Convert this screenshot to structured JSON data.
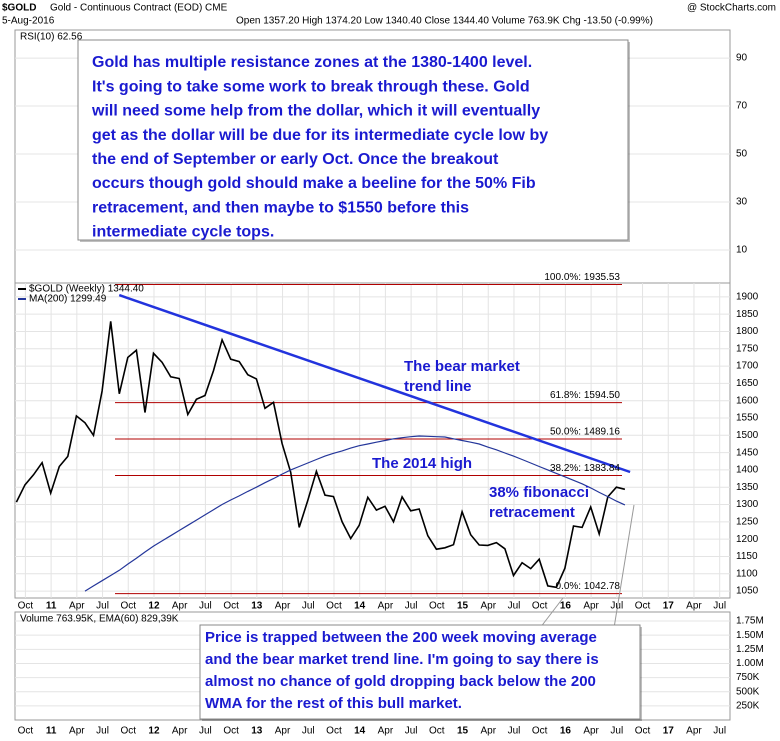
{
  "chart_data": {
    "type": "line",
    "header": {
      "symbol": "$GOLD",
      "name": "Gold - Continuous Contract (EOD) CME",
      "date": "5-Aug-2016",
      "quote": "Open 1357.20  High 1374.20  Low 1340.40  Close 1344.40  Volume 763.9K  Chg -13.50 (-0.99%)",
      "source": "@ StockCharts.com"
    },
    "x_labels": [
      "Oct",
      "11",
      "Apr",
      "Jul",
      "Oct",
      "12",
      "Apr",
      "Jul",
      "Oct",
      "13",
      "Apr",
      "Jul",
      "Oct",
      "14",
      "Apr",
      "Jul",
      "Oct",
      "15",
      "Apr",
      "Jul",
      "Oct",
      "16",
      "Apr",
      "Jul",
      "Oct",
      "17",
      "Apr",
      "Jul"
    ],
    "rsi": {
      "label": "RSI(10) 62.56",
      "ylim": [
        -3.75,
        101.7
      ],
      "yticks": [
        10,
        30,
        50,
        70,
        90
      ]
    },
    "price": {
      "ylim": [
        1030,
        1940
      ],
      "yticks": [
        1050,
        1100,
        1150,
        1200,
        1250,
        1300,
        1350,
        1400,
        1450,
        1500,
        1550,
        1600,
        1650,
        1700,
        1750,
        1800,
        1850,
        1900
      ],
      "series": [
        {
          "name": "$GOLD (Weekly) 1344.40",
          "color": "#000000",
          "values": [
            1307,
            1357,
            1386,
            1421,
            1333,
            1410,
            1439,
            1556,
            1536,
            1500,
            1628,
            1829,
            1620,
            1725,
            1746,
            1566,
            1737,
            1711,
            1669,
            1664,
            1560,
            1604,
            1615,
            1687,
            1776,
            1720,
            1713,
            1675,
            1663,
            1578,
            1595,
            1476,
            1393,
            1234,
            1312,
            1396,
            1327,
            1323,
            1250,
            1202,
            1240,
            1321,
            1284,
            1295,
            1250,
            1322,
            1282,
            1287,
            1210,
            1171,
            1175,
            1184,
            1279,
            1213,
            1183,
            1182,
            1190,
            1172,
            1095,
            1132,
            1115,
            1142,
            1065,
            1061,
            1116,
            1238,
            1234,
            1293,
            1215,
            1322,
            1350,
            1344
          ]
        },
        {
          "name": "MA(200) 1299.49",
          "color": "#24369a",
          "values": [
            null,
            null,
            null,
            null,
            null,
            null,
            null,
            null,
            1050,
            1065,
            1080,
            1095,
            1110,
            1128,
            1145,
            1163,
            1180,
            1195,
            1210,
            1225,
            1240,
            1255,
            1270,
            1285,
            1300,
            1313,
            1325,
            1338,
            1350,
            1363,
            1375,
            1388,
            1400,
            1410,
            1420,
            1430,
            1440,
            1448,
            1455,
            1463,
            1470,
            1475,
            1480,
            1485,
            1490,
            1493,
            1496,
            1498,
            1497,
            1496,
            1495,
            1490,
            1485,
            1480,
            1475,
            1466,
            1458,
            1449,
            1440,
            1430,
            1420,
            1410,
            1400,
            1390,
            1380,
            1370,
            1360,
            1348,
            1335,
            1323,
            1310,
            1299
          ]
        }
      ],
      "fib_levels": [
        {
          "label": "100.0%: 1935.53",
          "value": 1935.53
        },
        {
          "label": "61.8%: 1594.50",
          "value": 1594.5
        },
        {
          "label": "50.0%: 1489.16",
          "value": 1489.16
        },
        {
          "label": "38.2%: 1383.84",
          "value": 1383.84
        },
        {
          "label": "0.0%: 1042.78",
          "value": 1042.78
        }
      ],
      "fib_color": "#b00000",
      "trend_line": {
        "values": [
          1905,
          1394
        ],
        "color": "#2233dd"
      }
    },
    "volume": {
      "label": "Volume 763.95K, EMA(60) 829,39K",
      "ylim": [
        0,
        1910000
      ],
      "yticks": [
        {
          "value": 250000,
          "label": "250K"
        },
        {
          "value": 500000,
          "label": "500K"
        },
        {
          "value": 750000,
          "label": "750K"
        },
        {
          "value": 1000000,
          "label": "1.00M"
        },
        {
          "value": 1250000,
          "label": "1.25M"
        },
        {
          "value": 1500000,
          "label": "1.50M"
        },
        {
          "value": 1750000,
          "label": "1.75M"
        }
      ]
    },
    "annotations": {
      "box1": [
        "Gold has multiple resistance zones at the 1380-1400 level.",
        "It's going to take some work to break through these. Gold",
        "will need some help from the dollar, which it will eventually",
        "get as the dollar will be due for its intermediate cycle low by",
        "the end of September or early Oct. Once the breakout",
        "occurs though gold should make a beeline for the 50% Fib",
        "retracement, and then maybe to $1550 before this",
        "intermediate cycle tops."
      ],
      "box2": [
        "Price is trapped between the 200 week moving average",
        "and the bear market trend line. I'm going to say there is",
        "almost no chance of gold dropping back below the 200",
        "WMA for the rest of this bull market."
      ],
      "bear_trend": [
        "The bear market",
        "trend line"
      ],
      "high_2014": "The 2014 high",
      "fib38": [
        "38% fibonacci",
        "retracement"
      ]
    }
  }
}
